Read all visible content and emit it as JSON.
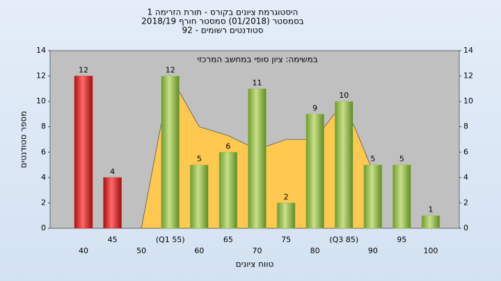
{
  "chart_data": {
    "type": "bar",
    "title": "היסטוגרמת ציונים בקורס - תורת הזרימה 1",
    "subtitle": "בסמסטר  (01/2018)  סמסטר חורף 2018/19",
    "subtitle2": "סטודנטים רשומים - 92",
    "annotation": "במשימה: ציון סופי במחשב המרכזי",
    "x_label": "טווח ציונים",
    "y_label": "מספר סטודנטים",
    "categories": [
      "40",
      "45",
      "50",
      "(Q1 55)",
      "60",
      "65",
      "70",
      "75",
      "80",
      "(Q3 85)",
      "90",
      "95",
      "100"
    ],
    "values": [
      12,
      4,
      null,
      12,
      5,
      6,
      11,
      2,
      9,
      10,
      5,
      5,
      1
    ],
    "colors": [
      "#d42a2a",
      "#d42a2a",
      "#9cc24e",
      "#9cc24e",
      "#9cc24e",
      "#9cc24e",
      "#9cc24e",
      "#9cc24e",
      "#9cc24e",
      "#9cc24e",
      "#9cc24e",
      "#9cc24e",
      "#9cc24e"
    ],
    "area": {
      "color": "#ffc850",
      "values": [
        null,
        null,
        0,
        12,
        8,
        7.3,
        6.2,
        7,
        7,
        10,
        4.5,
        null,
        null
      ]
    },
    "ylim": [
      0,
      14
    ],
    "yticks": [
      0,
      2,
      4,
      6,
      8,
      10,
      12,
      14
    ],
    "y2lim": [
      0,
      14
    ],
    "y2ticks": [
      0,
      2,
      4,
      6,
      8,
      10,
      12,
      14
    ],
    "grid": false
  }
}
